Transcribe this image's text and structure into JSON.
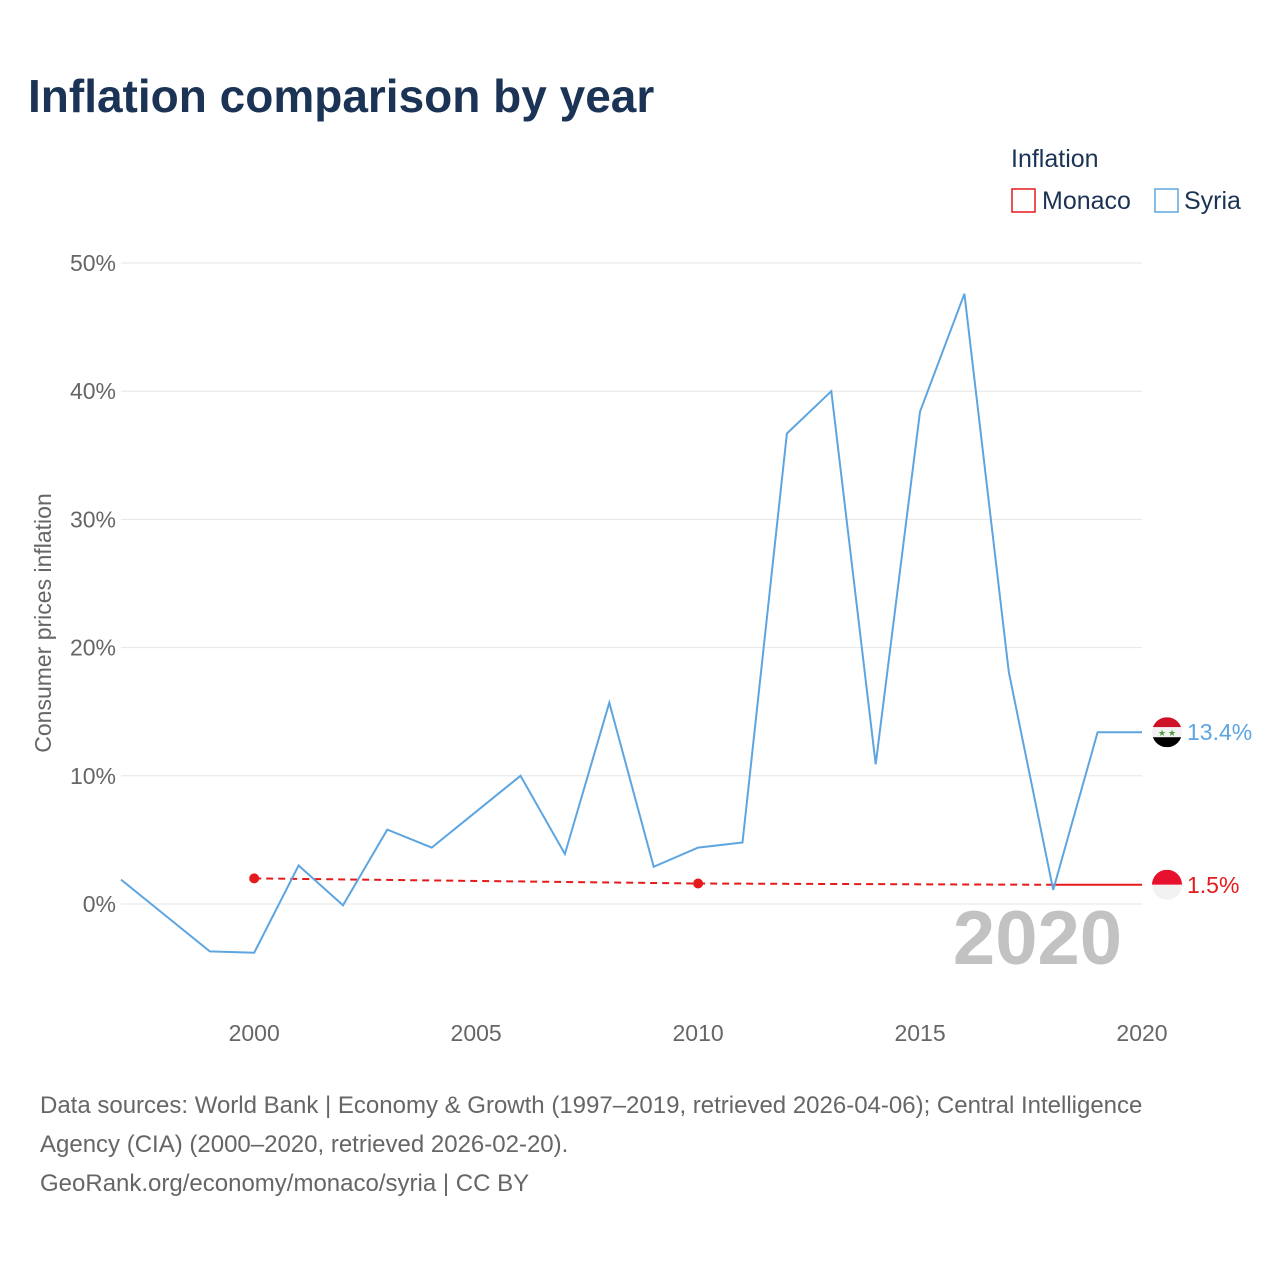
{
  "chart_data": {
    "type": "line",
    "title": "Inflation comparison by year",
    "xlabel": "",
    "ylabel": "Consumer prices inflation",
    "xlim": [
      1997,
      2020
    ],
    "ylim": [
      -8,
      50
    ],
    "x_ticks": [
      {
        "value": 2000,
        "label": "2000"
      },
      {
        "value": 2005,
        "label": "2005"
      },
      {
        "value": 2010,
        "label": "2010"
      },
      {
        "value": 2015,
        "label": "2015"
      },
      {
        "value": 2020,
        "label": "2020"
      }
    ],
    "y_ticks": [
      {
        "value": 0,
        "label": "0%"
      },
      {
        "value": 10,
        "label": "10%"
      },
      {
        "value": 20,
        "label": "20%"
      },
      {
        "value": 30,
        "label": "30%"
      },
      {
        "value": 40,
        "label": "40%"
      },
      {
        "value": 50,
        "label": "50%"
      }
    ],
    "grid": true,
    "legend": {
      "title": "Inflation",
      "placement": "top-right",
      "entries": [
        {
          "name": "Monaco",
          "color": "#e41a1c"
        },
        {
          "name": "Syria",
          "color": "#5da5e0"
        }
      ]
    },
    "year_watermark": "2020",
    "series": [
      {
        "name": "Monaco",
        "color": "#e41a1c",
        "style": "dashed",
        "x": [
          2000,
          2010,
          2018,
          2020
        ],
        "values": [
          2.0,
          1.6,
          1.5,
          1.5
        ],
        "markers": [
          2000,
          2010
        ],
        "solid_from": 2018,
        "end_label": "1.5%"
      },
      {
        "name": "Syria",
        "color": "#5da5e0",
        "style": "solid",
        "x": [
          1997,
          1998,
          1999,
          2000,
          2001,
          2002,
          2003,
          2004,
          2005,
          2006,
          2007,
          2008,
          2009,
          2010,
          2011,
          2012,
          2013,
          2014,
          2015,
          2016,
          2017,
          2018,
          2019,
          2020
        ],
        "values": [
          1.9,
          -0.9,
          -3.7,
          -3.8,
          3.0,
          -0.1,
          5.8,
          4.4,
          7.2,
          10.0,
          3.9,
          15.7,
          2.9,
          4.4,
          4.8,
          36.7,
          40.0,
          10.9,
          38.4,
          47.6,
          18.1,
          1.1,
          13.4,
          13.4
        ],
        "end_label": "13.4%"
      }
    ]
  },
  "sources": {
    "line1": "Data sources: World Bank | Economy & Growth (1997–2019, retrieved 2026-04-06); Central Intelligence",
    "line2": "Agency (CIA) (2000–2020, retrieved 2026-02-20).",
    "line3": "GeoRank.org/economy/monaco/syria | CC BY"
  },
  "flags": {
    "monaco": {
      "top": "#e8112d",
      "bottom": "#f2f2f2"
    },
    "syria": {
      "top": "#ce1126",
      "middle": "#f2f2f2",
      "bottom": "#000000",
      "stars": "#4e9a3a"
    }
  }
}
